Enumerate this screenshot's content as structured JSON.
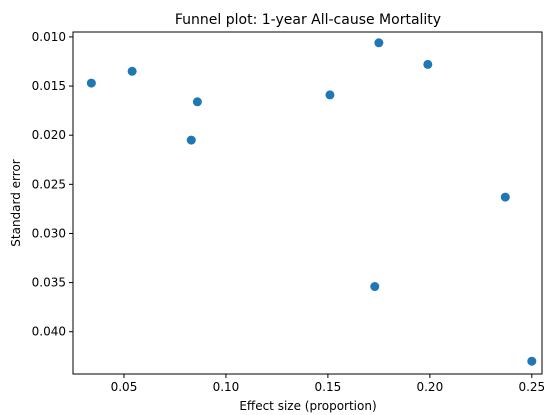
{
  "chart_data": {
    "type": "scatter",
    "title": "Funnel plot: 1-year All-cause Mortality",
    "xlabel": "Effect size (proportion)",
    "ylabel": "Standard error",
    "xlim": [
      0.025,
      0.255
    ],
    "ylim": [
      0.0095,
      0.0443
    ],
    "y_inverted": true,
    "grid": false,
    "marker_color": "#1f77b4",
    "x_ticks": [
      {
        "value": 0.05,
        "label": "0.05"
      },
      {
        "value": 0.1,
        "label": "0.10"
      },
      {
        "value": 0.15,
        "label": "0.15"
      },
      {
        "value": 0.2,
        "label": "0.20"
      },
      {
        "value": 0.25,
        "label": "0.25"
      }
    ],
    "y_ticks": [
      {
        "value": 0.01,
        "label": "0.010"
      },
      {
        "value": 0.015,
        "label": "0.015"
      },
      {
        "value": 0.02,
        "label": "0.020"
      },
      {
        "value": 0.025,
        "label": "0.025"
      },
      {
        "value": 0.03,
        "label": "0.030"
      },
      {
        "value": 0.035,
        "label": "0.035"
      },
      {
        "value": 0.04,
        "label": "0.040"
      }
    ],
    "points": [
      {
        "x": 0.034,
        "y": 0.0147
      },
      {
        "x": 0.054,
        "y": 0.0135
      },
      {
        "x": 0.083,
        "y": 0.0205
      },
      {
        "x": 0.086,
        "y": 0.0166
      },
      {
        "x": 0.151,
        "y": 0.0159
      },
      {
        "x": 0.173,
        "y": 0.0354
      },
      {
        "x": 0.175,
        "y": 0.0106
      },
      {
        "x": 0.199,
        "y": 0.0128
      },
      {
        "x": 0.237,
        "y": 0.0263
      },
      {
        "x": 0.25,
        "y": 0.043
      }
    ]
  }
}
